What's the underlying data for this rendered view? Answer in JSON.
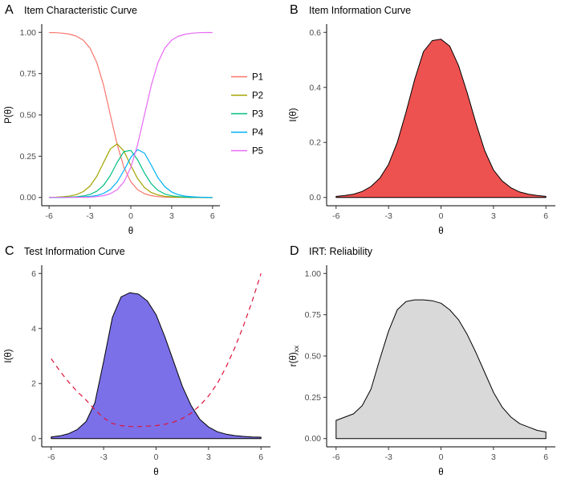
{
  "background": "#FFFFFF",
  "chart_data": [
    {
      "panel_label": "A",
      "type": "line",
      "title": "Item Characteristic Curve",
      "xlabel": "θ",
      "ylabel": "P(θ)",
      "ylabel_sub": "",
      "xlim": [
        -6,
        6
      ],
      "ylim": [
        0,
        1
      ],
      "grid": false,
      "x_ticks": {
        "values": [
          -6,
          -3,
          0,
          3,
          6
        ],
        "labels": [
          "-6",
          "-3",
          "0",
          "3",
          "6"
        ]
      },
      "y_ticks": {
        "values": [
          0,
          0.25,
          0.5,
          0.75,
          1
        ],
        "labels": [
          "0.00",
          "0.25",
          "0.50",
          "0.75",
          "1.00"
        ]
      },
      "legend": [
        "P1",
        "P2",
        "P3",
        "P4",
        "P5"
      ],
      "legend_position": "right",
      "x": [
        -6,
        -5.5,
        -5,
        -4.5,
        -4,
        -3.5,
        -3,
        -2.5,
        -2,
        -1.5,
        -1,
        -0.5,
        0,
        0.5,
        1,
        1.5,
        2,
        2.5,
        3,
        3.5,
        4,
        4.5,
        5,
        5.5,
        6
      ],
      "series": [
        {
          "name": "P1",
          "color": "#F8766D",
          "values": [
            0.999,
            0.998,
            0.995,
            0.989,
            0.977,
            0.953,
            0.905,
            0.818,
            0.679,
            0.5,
            0.321,
            0.182,
            0.095,
            0.047,
            0.023,
            0.011,
            0.005,
            0.002,
            0.001,
            0.001,
            0,
            0,
            0,
            0,
            0
          ]
        },
        {
          "name": "P2",
          "color": "#A3A500",
          "values": [
            0.001,
            0.002,
            0.004,
            0.008,
            0.017,
            0.035,
            0.069,
            0.128,
            0.212,
            0.294,
            0.325,
            0.28,
            0.194,
            0.114,
            0.06,
            0.03,
            0.015,
            0.007,
            0.003,
            0.002,
            0.001,
            0,
            0,
            0,
            0
          ]
        },
        {
          "name": "P3",
          "color": "#00BF7D",
          "values": [
            0,
            0,
            0.001,
            0.002,
            0.004,
            0.009,
            0.018,
            0.038,
            0.074,
            0.133,
            0.213,
            0.278,
            0.285,
            0.228,
            0.148,
            0.083,
            0.043,
            0.021,
            0.01,
            0.005,
            0.002,
            0.001,
            0.001,
            0,
            0
          ]
        },
        {
          "name": "P4",
          "color": "#00B0F6",
          "values": [
            0,
            0,
            0,
            0.001,
            0.001,
            0.003,
            0.006,
            0.012,
            0.025,
            0.049,
            0.094,
            0.164,
            0.243,
            0.29,
            0.269,
            0.196,
            0.119,
            0.065,
            0.033,
            0.016,
            0.008,
            0.004,
            0.002,
            0.001,
            0
          ]
        },
        {
          "name": "P5",
          "color": "#E76BF3",
          "values": [
            0,
            0,
            0,
            0,
            0.001,
            0.001,
            0.002,
            0.005,
            0.011,
            0.023,
            0.047,
            0.095,
            0.182,
            0.321,
            0.5,
            0.679,
            0.818,
            0.905,
            0.953,
            0.977,
            0.989,
            0.995,
            0.998,
            0.999,
            0.999
          ]
        }
      ]
    },
    {
      "panel_label": "B",
      "type": "area",
      "title": "Item Information Curve",
      "xlabel": "θ",
      "ylabel": "I(θ)",
      "ylabel_sub": "",
      "xlim": [
        -6,
        6
      ],
      "ylim": [
        0,
        0.6
      ],
      "grid": false,
      "x_ticks": {
        "values": [
          -6,
          -3,
          0,
          3,
          6
        ],
        "labels": [
          "-6",
          "-3",
          "0",
          "3",
          "6"
        ]
      },
      "y_ticks": {
        "values": [
          0,
          0.2,
          0.4,
          0.6
        ],
        "labels": [
          "0.0",
          "0.2",
          "0.4",
          "0.6"
        ]
      },
      "x": [
        -6,
        -5.5,
        -5,
        -4.5,
        -4,
        -3.5,
        -3,
        -2.5,
        -2,
        -1.5,
        -1,
        -0.5,
        0,
        0.5,
        1,
        1.5,
        2,
        2.5,
        3,
        3.5,
        4,
        4.5,
        5,
        5.5,
        6
      ],
      "series": [
        {
          "name": "item-information",
          "color": "#000000",
          "fill": "#EE5250",
          "values": [
            0.004,
            0.007,
            0.012,
            0.022,
            0.04,
            0.07,
            0.12,
            0.2,
            0.31,
            0.43,
            0.53,
            0.57,
            0.575,
            0.55,
            0.48,
            0.38,
            0.27,
            0.17,
            0.1,
            0.06,
            0.035,
            0.02,
            0.012,
            0.007,
            0.004
          ]
        }
      ]
    },
    {
      "panel_label": "C",
      "type": "area",
      "title": "Test Information Curve",
      "xlabel": "θ",
      "ylabel": "I(θ)",
      "ylabel_sub": "",
      "xlim": [
        -6,
        6
      ],
      "ylim": [
        0,
        6
      ],
      "grid": false,
      "x_ticks": {
        "values": [
          -6,
          -3,
          0,
          3,
          6
        ],
        "labels": [
          "-6",
          "-3",
          "0",
          "3",
          "6"
        ]
      },
      "y_ticks": {
        "values": [
          0,
          2,
          4,
          6
        ],
        "labels": [
          "0",
          "2",
          "4",
          "6"
        ]
      },
      "x": [
        -6,
        -5.5,
        -5,
        -4.5,
        -4,
        -3.5,
        -3,
        -2.5,
        -2,
        -1.5,
        -1,
        -0.5,
        0,
        0.5,
        1,
        1.5,
        2,
        2.5,
        3,
        3.5,
        4,
        4.5,
        5,
        5.5,
        6
      ],
      "series": [
        {
          "name": "test-information",
          "color": "#000000",
          "fill": "#7B70E8",
          "values": [
            0.06,
            0.1,
            0.18,
            0.33,
            0.62,
            1.3,
            2.8,
            4.4,
            5.15,
            5.3,
            5.25,
            5,
            4.5,
            3.7,
            2.8,
            1.9,
            1.2,
            0.7,
            0.42,
            0.25,
            0.16,
            0.11,
            0.08,
            0.06,
            0.05
          ]
        },
        {
          "name": "standard-error",
          "color": "#DC143C",
          "dash": "6 5",
          "values": [
            2.9,
            2.45,
            2.05,
            1.7,
            1.4,
            1.05,
            0.75,
            0.55,
            0.47,
            0.44,
            0.44,
            0.45,
            0.47,
            0.52,
            0.6,
            0.73,
            0.92,
            1.2,
            1.55,
            2,
            2.6,
            3.3,
            4.1,
            5,
            6
          ]
        }
      ]
    },
    {
      "panel_label": "D",
      "type": "area",
      "title": "IRT: Reliability",
      "xlabel": "θ",
      "ylabel": "r(θ)",
      "ylabel_sub": "xx",
      "xlim": [
        -6,
        6
      ],
      "ylim": [
        0,
        1
      ],
      "grid": false,
      "x_ticks": {
        "values": [
          -6,
          -3,
          0,
          3,
          6
        ],
        "labels": [
          "-6",
          "-3",
          "0",
          "3",
          "6"
        ]
      },
      "y_ticks": {
        "values": [
          0,
          0.25,
          0.5,
          0.75,
          1
        ],
        "labels": [
          "0.00",
          "0.25",
          "0.50",
          "0.75",
          "1.00"
        ]
      },
      "x": [
        -6,
        -5.5,
        -5,
        -4.5,
        -4,
        -3.5,
        -3,
        -2.5,
        -2,
        -1.5,
        -1,
        -0.5,
        0,
        0.5,
        1,
        1.5,
        2,
        2.5,
        3,
        3.5,
        4,
        4.5,
        5,
        5.5,
        6
      ],
      "series": [
        {
          "name": "reliability",
          "color": "#000000",
          "fill": "#D9D9D9",
          "values": [
            0.11,
            0.13,
            0.15,
            0.2,
            0.3,
            0.48,
            0.65,
            0.78,
            0.83,
            0.84,
            0.84,
            0.835,
            0.82,
            0.78,
            0.72,
            0.63,
            0.52,
            0.4,
            0.28,
            0.19,
            0.13,
            0.09,
            0.07,
            0.05,
            0.04
          ]
        }
      ]
    }
  ]
}
